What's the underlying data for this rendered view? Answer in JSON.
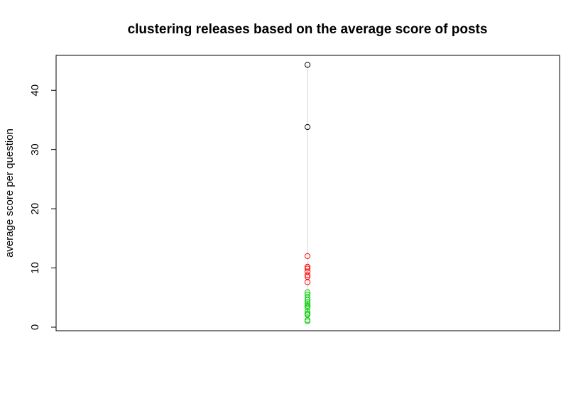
{
  "chart_data": {
    "type": "scatter",
    "title": "clustering releases based on the average score of posts",
    "ylabel": "average score per question",
    "xlabel": "",
    "ylim": [
      -0.6,
      45.9
    ],
    "yticks": [
      0,
      10,
      20,
      30,
      40
    ],
    "grid": false,
    "legend": "none",
    "guide_line": {
      "y_from": 1.0,
      "y_to": 44.3,
      "color": "#d3d3d3"
    },
    "series": [
      {
        "color": "#000000",
        "values": [
          44.3,
          33.8
        ]
      },
      {
        "color": "#ff0000",
        "values": [
          12.0,
          10.2,
          9.9,
          9.4,
          8.8,
          8.5,
          7.6
        ]
      },
      {
        "color": "#00cd00",
        "values": [
          5.9,
          5.5,
          5.0,
          4.6,
          4.2,
          3.9,
          3.6,
          3.3,
          2.6,
          2.3,
          2.1,
          1.2,
          1.0
        ]
      }
    ]
  }
}
